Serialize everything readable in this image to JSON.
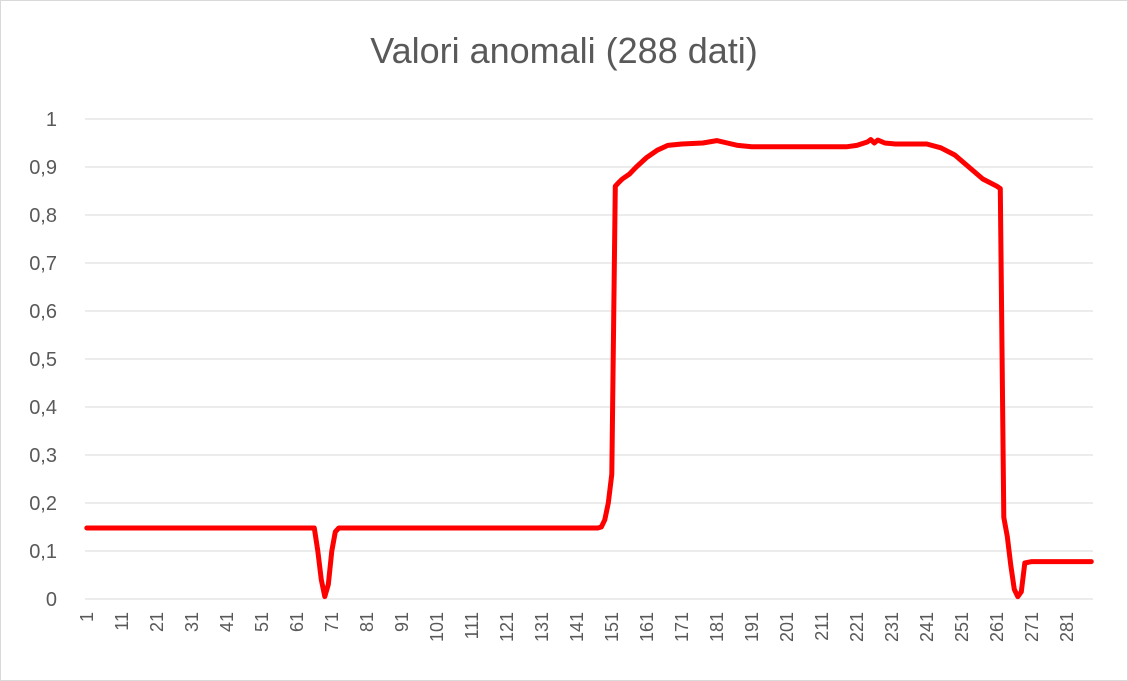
{
  "chart_data": {
    "type": "line",
    "title": "Valori anomali (288 dati)",
    "xlabel": "",
    "ylabel": "",
    "x_range": [
      1,
      288
    ],
    "ylim": [
      0,
      1
    ],
    "y_ticks": [
      "0",
      "0,1",
      "0,2",
      "0,3",
      "0,4",
      "0,5",
      "0,6",
      "0,7",
      "0,8",
      "0,9",
      "1"
    ],
    "y_tick_values": [
      0,
      0.1,
      0.2,
      0.3,
      0.4,
      0.5,
      0.6,
      0.7,
      0.8,
      0.9,
      1.0
    ],
    "x_ticks": [
      "1",
      "11",
      "21",
      "31",
      "41",
      "51",
      "61",
      "71",
      "81",
      "91",
      "101",
      "111",
      "121",
      "131",
      "141",
      "151",
      "161",
      "171",
      "181",
      "191",
      "201",
      "211",
      "221",
      "231",
      "241",
      "251",
      "261",
      "271",
      "281"
    ],
    "x_tick_values": [
      1,
      11,
      21,
      31,
      41,
      51,
      61,
      71,
      81,
      91,
      101,
      111,
      121,
      131,
      141,
      151,
      161,
      171,
      181,
      191,
      201,
      211,
      221,
      231,
      241,
      251,
      261,
      271,
      281
    ],
    "grid": true,
    "legend": "none",
    "series": [
      {
        "color": "#ff0000",
        "points": [
          [
            1,
            0.148
          ],
          [
            66,
            0.148
          ],
          [
            67,
            0.1
          ],
          [
            68,
            0.04
          ],
          [
            69,
            0.005
          ],
          [
            70,
            0.03
          ],
          [
            71,
            0.1
          ],
          [
            72,
            0.14
          ],
          [
            73,
            0.148
          ],
          [
            147,
            0.148
          ],
          [
            148,
            0.15
          ],
          [
            149,
            0.165
          ],
          [
            150,
            0.2
          ],
          [
            151,
            0.26
          ],
          [
            152,
            0.86
          ],
          [
            153,
            0.868
          ],
          [
            154,
            0.875
          ],
          [
            156,
            0.885
          ],
          [
            158,
            0.9
          ],
          [
            161,
            0.92
          ],
          [
            164,
            0.935
          ],
          [
            167,
            0.945
          ],
          [
            171,
            0.948
          ],
          [
            177,
            0.95
          ],
          [
            181,
            0.955
          ],
          [
            184,
            0.95
          ],
          [
            187,
            0.945
          ],
          [
            191,
            0.942
          ],
          [
            200,
            0.942
          ],
          [
            210,
            0.942
          ],
          [
            218,
            0.942
          ],
          [
            221,
            0.945
          ],
          [
            224,
            0.952
          ],
          [
            225,
            0.957
          ],
          [
            226,
            0.95
          ],
          [
            227,
            0.956
          ],
          [
            229,
            0.95
          ],
          [
            232,
            0.948
          ],
          [
            241,
            0.948
          ],
          [
            245,
            0.94
          ],
          [
            249,
            0.925
          ],
          [
            253,
            0.9
          ],
          [
            257,
            0.875
          ],
          [
            261,
            0.86
          ],
          [
            262,
            0.855
          ],
          [
            263,
            0.17
          ],
          [
            264,
            0.13
          ],
          [
            265,
            0.07
          ],
          [
            266,
            0.02
          ],
          [
            267,
            0.005
          ],
          [
            268,
            0.015
          ],
          [
            269,
            0.075
          ],
          [
            271,
            0.078
          ],
          [
            276,
            0.078
          ],
          [
            281,
            0.078
          ],
          [
            285,
            0.078
          ],
          [
            288,
            0.078
          ]
        ]
      }
    ]
  }
}
